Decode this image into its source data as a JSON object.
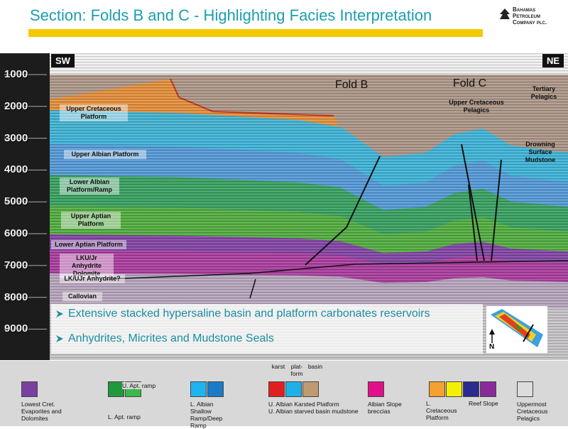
{
  "header": {
    "title": "Section: Folds B and C - Highlighting Facies Interpretation",
    "logo": [
      "Bahamas",
      "Petroleum",
      "Company plc."
    ]
  },
  "section": {
    "left_label": "SW",
    "right_label": "NE",
    "depth_labels": [
      1000,
      2000,
      3000,
      4000,
      5000,
      6000,
      7000,
      8000,
      9000
    ],
    "folds": [
      "Fold B",
      "Fold C"
    ],
    "annotations": [
      "Upper Cretaceous Platform",
      "Upper Cretaceous Pelagics",
      "Tertiary Pelagics",
      "Upper Albian Platform",
      "Drowning Surface Mudstone",
      "Lower Albian Platform/Ramp",
      "Upper Aptian Platform",
      "Lower Aptian Platform",
      "LKU/Jr Anhydrite Dolomite",
      "LK/UJr Anhydrite?",
      "Callovian"
    ]
  },
  "bullets": [
    "Extensive stacked hypersaline basin and platform carbonates reservoirs",
    "Anhydrites, Micrites and Mudstone Seals"
  ],
  "inset_map": {
    "label": "N"
  },
  "legend": [
    {
      "swatches": [
        "#7b3fa0"
      ],
      "labels": [
        "Lowest Cret. Evaporites and Dolomites"
      ]
    },
    {
      "swatches": [
        "#1e9a3c",
        "#3cb84a"
      ],
      "labels": [
        "U. Apt. ramp",
        "L. Apt. ramp"
      ]
    },
    {
      "swatches": [
        "#1eb4f0",
        "#1a7cc8"
      ],
      "labels": [
        "L. Albian Shallow Ramp/Deep Ramp"
      ]
    },
    {
      "swatches": [
        "#e02020",
        "#20b0e8",
        "#c09a70"
      ],
      "tops": [
        "karst",
        "plat-form",
        "basin"
      ],
      "labels": [
        "U. Albian Karsted Platform",
        "U. Albian starved basin mudstone"
      ]
    },
    {
      "swatches": [
        "#e0108a"
      ],
      "labels": [
        "Albian Slope breccias"
      ]
    },
    {
      "swatches": [
        "#f5a030",
        "#f5f000",
        "#2a2a90",
        "#8a2a9a"
      ],
      "labels": [
        "L. Cretaceous Platform",
        "Reef",
        "Slope"
      ]
    },
    {
      "swatches": [
        "#dcdcdc"
      ],
      "labels": [
        "Uppermost Cretaceous Pelagics"
      ]
    }
  ]
}
